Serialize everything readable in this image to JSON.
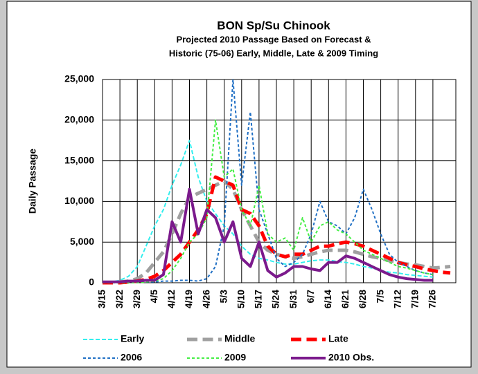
{
  "chart_data": {
    "type": "line",
    "title": "BON Sp/Su Chinook",
    "subtitle": [
      "Projected 2010 Passage Based on Forecast &",
      "Historic (75-06)   Early, Middle, Late & 2009 Timing"
    ],
    "y_label": "Daily Passage",
    "categories": [
      "3/15",
      null,
      "3/22",
      null,
      "3/29",
      null,
      "4/5",
      null,
      "4/12",
      null,
      "4/19",
      null,
      "4/26",
      null,
      "5/3",
      null,
      "5/10",
      null,
      "5/17",
      null,
      "5/24",
      null,
      "5/31",
      null,
      "6/7",
      null,
      "6/14",
      null,
      "6/21",
      null,
      "6/28",
      null,
      "7/5",
      null,
      "7/12",
      null,
      "7/19",
      null,
      "7/26",
      null,
      null
    ],
    "ylim": [
      0,
      25000
    ],
    "yticks": [
      0,
      {
        "value": 5000,
        "label": "5,000"
      },
      {
        "value": 10000,
        "label": "10,000"
      },
      {
        "value": 15000,
        "label": "15,000"
      },
      {
        "value": 20000,
        "label": "20,000"
      },
      {
        "value": 25000,
        "label": "25,000"
      }
    ],
    "grid": true,
    "legend": "bottom",
    "series": [
      {
        "name": "Early",
        "color": "#33eeee",
        "style": "dashed",
        "width": 2,
        "values": [
          0,
          100,
          300,
          800,
          2000,
          4500,
          7000,
          9000,
          12000,
          14500,
          17500,
          13000,
          10000,
          8500,
          7000,
          6000,
          4500,
          3500,
          3000,
          2800,
          2500,
          2300,
          2300,
          2500,
          2700,
          2800,
          2800,
          2600,
          2500,
          2300,
          2000,
          1800,
          1500,
          1300,
          1200,
          1000,
          900,
          800,
          700,
          null,
          null
        ]
      },
      {
        "name": "Middle",
        "color": "#a0a0a0",
        "style": "dashed",
        "width": 5,
        "values": [
          0,
          0,
          100,
          200,
          500,
          1200,
          2500,
          3800,
          6000,
          8500,
          10500,
          11000,
          11500,
          12000,
          12500,
          11500,
          9000,
          7000,
          5000,
          4000,
          3500,
          3200,
          3000,
          3200,
          3500,
          3800,
          4000,
          4000,
          4000,
          3800,
          3500,
          3200,
          3000,
          2700,
          2500,
          2300,
          2200,
          2000,
          1800,
          1900,
          2000
        ]
      },
      {
        "name": "Late",
        "color": "#ff0000",
        "style": "dashed",
        "width": 5,
        "values": [
          0,
          0,
          0,
          100,
          200,
          400,
          800,
          1500,
          2500,
          3500,
          5000,
          6500,
          8500,
          13000,
          12500,
          12000,
          9000,
          8500,
          7000,
          4500,
          3500,
          3200,
          3500,
          3500,
          4000,
          4500,
          4500,
          4800,
          5000,
          4800,
          4500,
          4000,
          3500,
          3000,
          2500,
          2200,
          2000,
          1700,
          1500,
          1300,
          1200
        ]
      },
      {
        "name": "2006",
        "color": "#1f6fc4",
        "style": "dotted",
        "width": 2,
        "values": [
          0,
          0,
          0,
          100,
          100,
          100,
          100,
          200,
          200,
          300,
          300,
          200,
          500,
          2000,
          7000,
          25000,
          12000,
          21000,
          9000,
          6000,
          3000,
          2000,
          2500,
          3500,
          6000,
          10000,
          7500,
          7000,
          6000,
          8000,
          11500,
          9000,
          6000,
          3500,
          2500,
          2000,
          1500,
          1200,
          1000,
          null,
          null
        ]
      },
      {
        "name": "2009",
        "color": "#44ee44",
        "style": "dotted",
        "width": 2,
        "values": [
          0,
          0,
          0,
          0,
          0,
          100,
          200,
          500,
          1500,
          3000,
          5000,
          6000,
          8000,
          20000,
          13000,
          14000,
          9000,
          7000,
          12000,
          6000,
          5000,
          5500,
          4000,
          8000,
          5000,
          7000,
          7500,
          6500,
          6000,
          5000,
          4000,
          3500,
          3000,
          2500,
          2000,
          1800,
          1500,
          1200,
          1000,
          null,
          null
        ]
      },
      {
        "name": "2010 Obs.",
        "color": "#7b1a8c",
        "style": "solid",
        "width": 4,
        "values": [
          100,
          100,
          100,
          200,
          200,
          300,
          300,
          1000,
          7500,
          5000,
          11500,
          6000,
          9000,
          8000,
          5000,
          7500,
          3000,
          2000,
          5000,
          1500,
          700,
          1200,
          2000,
          2000,
          1700,
          1500,
          2500,
          2500,
          3300,
          3000,
          2500,
          2000,
          1500,
          1000,
          700,
          500,
          400,
          300,
          300,
          null,
          null
        ]
      }
    ]
  }
}
